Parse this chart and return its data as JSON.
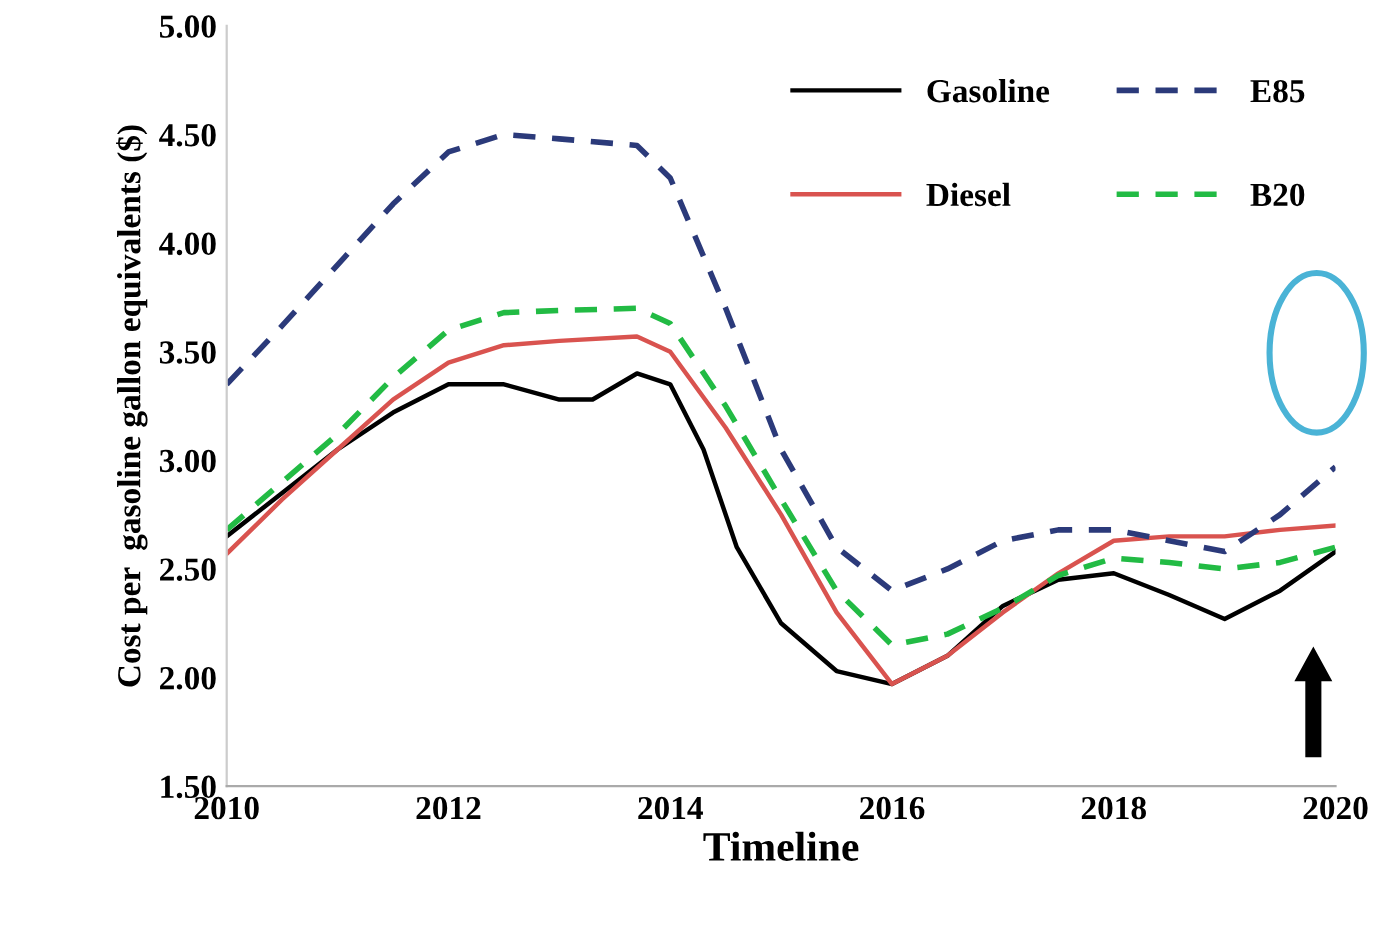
{
  "chart_data": {
    "type": "line",
    "xlabel": "Timeline",
    "ylabel": "Cost per  gasoline gallon equivalents ($)",
    "xlim": [
      2010,
      2020
    ],
    "xticks": [
      2010,
      2012,
      2014,
      2016,
      2018,
      2020
    ],
    "ylim": [
      1.5,
      5.0
    ],
    "yticks": [
      {
        "value": 1.5,
        "label": "1.50"
      },
      {
        "value": 2.0,
        "label": "2.00"
      },
      {
        "value": 2.5,
        "label": "2.50"
      },
      {
        "value": 3.0,
        "label": "3.00"
      },
      {
        "value": 3.5,
        "label": "3.50"
      },
      {
        "value": 4.0,
        "label": "4.00"
      },
      {
        "value": 4.5,
        "label": "4.50"
      },
      {
        "value": 5.0,
        "label": "5.00"
      }
    ],
    "grid": false,
    "legend": "top right",
    "marker": "none",
    "series": [
      {
        "name": "Gasoline",
        "color": "#000000",
        "line_style": "solid",
        "x": [
          2010,
          2010.5,
          2011,
          2011.5,
          2012,
          2012.5,
          2013,
          2013.3,
          2013.7,
          2014,
          2014.3,
          2014.6,
          2015,
          2015.5,
          2016,
          2016.5,
          2017,
          2017.5,
          2018,
          2018.5,
          2019,
          2019.5,
          2020
        ],
        "values": [
          2.65,
          2.85,
          3.05,
          3.22,
          3.35,
          3.35,
          3.28,
          3.28,
          3.4,
          3.35,
          3.05,
          2.6,
          2.25,
          2.03,
          1.97,
          2.1,
          2.33,
          2.45,
          2.48,
          2.38,
          2.27,
          2.4,
          2.58
        ]
      },
      {
        "name": "Diesel",
        "color": "#d9534f",
        "line_style": "solid",
        "x": [
          2010,
          2010.5,
          2011,
          2011.5,
          2012,
          2012.5,
          2013,
          2013.7,
          2014,
          2014.5,
          2015,
          2015.5,
          2016,
          2016.5,
          2017,
          2017.5,
          2018,
          2018.5,
          2019,
          2019.5,
          2020
        ],
        "values": [
          2.57,
          2.82,
          3.05,
          3.28,
          3.45,
          3.53,
          3.55,
          3.57,
          3.5,
          3.15,
          2.75,
          2.3,
          1.97,
          2.1,
          2.3,
          2.48,
          2.63,
          2.65,
          2.65,
          2.68,
          2.7
        ]
      },
      {
        "name": "E85",
        "color": "#2b3a7a",
        "line_style": "dashed",
        "x": [
          2010,
          2010.5,
          2011,
          2011.5,
          2012,
          2012.5,
          2013,
          2013.7,
          2014,
          2014.5,
          2015,
          2015.5,
          2016,
          2016.5,
          2017,
          2017.5,
          2018,
          2018.5,
          2019,
          2019.5,
          2020
        ],
        "values": [
          3.35,
          3.62,
          3.9,
          4.18,
          4.42,
          4.5,
          4.48,
          4.45,
          4.3,
          3.7,
          3.05,
          2.6,
          2.4,
          2.5,
          2.63,
          2.68,
          2.68,
          2.63,
          2.58,
          2.75,
          2.97
        ]
      },
      {
        "name": "B20",
        "color": "#22bb44",
        "line_style": "dashed",
        "x": [
          2010,
          2010.5,
          2011,
          2011.5,
          2012,
          2012.5,
          2013,
          2013.7,
          2014,
          2014.5,
          2015,
          2015.5,
          2016,
          2016.5,
          2017,
          2017.5,
          2018,
          2018.5,
          2019,
          2019.5,
          2020
        ],
        "values": [
          2.68,
          2.9,
          3.12,
          3.38,
          3.6,
          3.68,
          3.69,
          3.7,
          3.63,
          3.25,
          2.82,
          2.4,
          2.15,
          2.2,
          2.32,
          2.47,
          2.55,
          2.53,
          2.5,
          2.53,
          2.6
        ]
      }
    ]
  }
}
